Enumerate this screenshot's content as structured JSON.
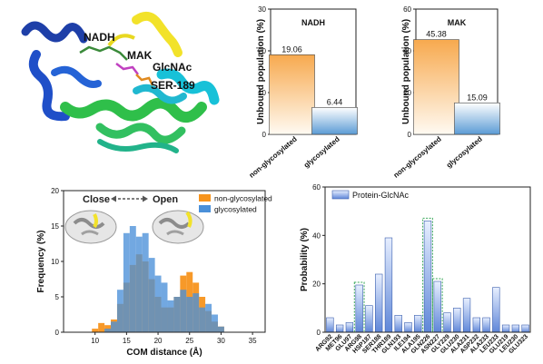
{
  "figure": {
    "structure_labels": [
      "NADH",
      "MAK",
      "GlcNAc",
      "SER-189"
    ],
    "close_label": "Close",
    "open_label": "Open"
  },
  "chart_data": [
    {
      "id": "nadh",
      "type": "bar",
      "title": "NADH",
      "ylabel": "Unbound population (%)",
      "categories": [
        "non-glycosylated",
        "glycosylated"
      ],
      "values": [
        19.06,
        6.44
      ],
      "value_labels": [
        "19.06",
        "6.44"
      ],
      "ylim": [
        0,
        30
      ],
      "yticks": [
        0,
        10,
        20,
        30
      ],
      "colors": [
        "#f7a94e",
        "#5b9bd5"
      ]
    },
    {
      "id": "mak",
      "type": "bar",
      "title": "MAK",
      "ylabel": "Unbound population (%)",
      "categories": [
        "non-glycosylated",
        "glycosylated"
      ],
      "values": [
        45.38,
        15.09
      ],
      "value_labels": [
        "45.38",
        "15.09"
      ],
      "ylim": [
        0,
        60
      ],
      "yticks": [
        0,
        20,
        40,
        60
      ],
      "colors": [
        "#f7a94e",
        "#5b9bd5"
      ]
    },
    {
      "id": "com",
      "type": "histogram",
      "xlabel": "COM distance (Å)",
      "ylabel": "Frequency (%)",
      "xlim": [
        5,
        37
      ],
      "ylim": [
        0,
        20
      ],
      "xticks": [
        10,
        15,
        20,
        25,
        30,
        35
      ],
      "yticks": [
        0,
        5,
        10,
        15,
        20
      ],
      "bin_width": 1,
      "legend_position": "top-right",
      "series": [
        {
          "name": "non-glycosylated",
          "color": "#f7941d",
          "bins": [
            [
              10,
              0.5
            ],
            [
              11,
              1.3
            ],
            [
              12,
              1.0
            ],
            [
              13,
              1.8
            ],
            [
              14,
              4.0
            ],
            [
              15,
              7.0
            ],
            [
              16,
              9.5
            ],
            [
              17,
              11.0
            ],
            [
              18,
              10.0
            ],
            [
              19,
              7.5
            ],
            [
              20,
              5.0
            ],
            [
              21,
              3.5
            ],
            [
              22,
              3.5
            ],
            [
              23,
              5.0
            ],
            [
              24,
              8.0
            ],
            [
              25,
              8.5
            ],
            [
              26,
              7.0
            ],
            [
              27,
              5.0
            ],
            [
              28,
              3.0
            ],
            [
              29,
              1.5
            ],
            [
              30,
              0.8
            ]
          ]
        },
        {
          "name": "glycosylated",
          "color": "#4a90d9",
          "bins": [
            [
              12,
              0.5
            ],
            [
              13,
              1.5
            ],
            [
              14,
              6.0
            ],
            [
              15,
              14.0
            ],
            [
              16,
              15.0
            ],
            [
              17,
              13.5
            ],
            [
              18,
              14.0
            ],
            [
              19,
              10.5
            ],
            [
              20,
              8.0
            ],
            [
              21,
              7.0
            ],
            [
              22,
              4.5
            ],
            [
              23,
              5.0
            ],
            [
              24,
              6.0
            ],
            [
              25,
              5.0
            ],
            [
              26,
              5.5
            ],
            [
              27,
              3.5
            ],
            [
              28,
              4.0
            ],
            [
              29,
              2.5
            ],
            [
              30,
              0.8
            ]
          ]
        }
      ]
    },
    {
      "id": "prob",
      "type": "bar",
      "ylabel": "Probability (%)",
      "legend": "Protein-GlcNAc",
      "legend_position": "top-left",
      "ylim": [
        0,
        60
      ],
      "yticks": [
        0,
        20,
        40,
        60
      ],
      "categories": [
        "ARG92",
        "MET96",
        "GLU97",
        "ARG98",
        "HSP187",
        "SER188",
        "THR189",
        "GLN193",
        "ILE194",
        "ALA195",
        "GLN226",
        "ASN227",
        "GLY229",
        "GLU230",
        "ALA231",
        "ASP232",
        "ALA233",
        "LEU233",
        "GLU219",
        "LEU230",
        "GLU323"
      ],
      "values": [
        6,
        3,
        4,
        19.5,
        11,
        24,
        39,
        7,
        4,
        7,
        46,
        21,
        8,
        10,
        14,
        6,
        6,
        18.5,
        3,
        3,
        3
      ],
      "highlighted": [
        "ARG98",
        "GLN226",
        "ASN227"
      ]
    }
  ]
}
